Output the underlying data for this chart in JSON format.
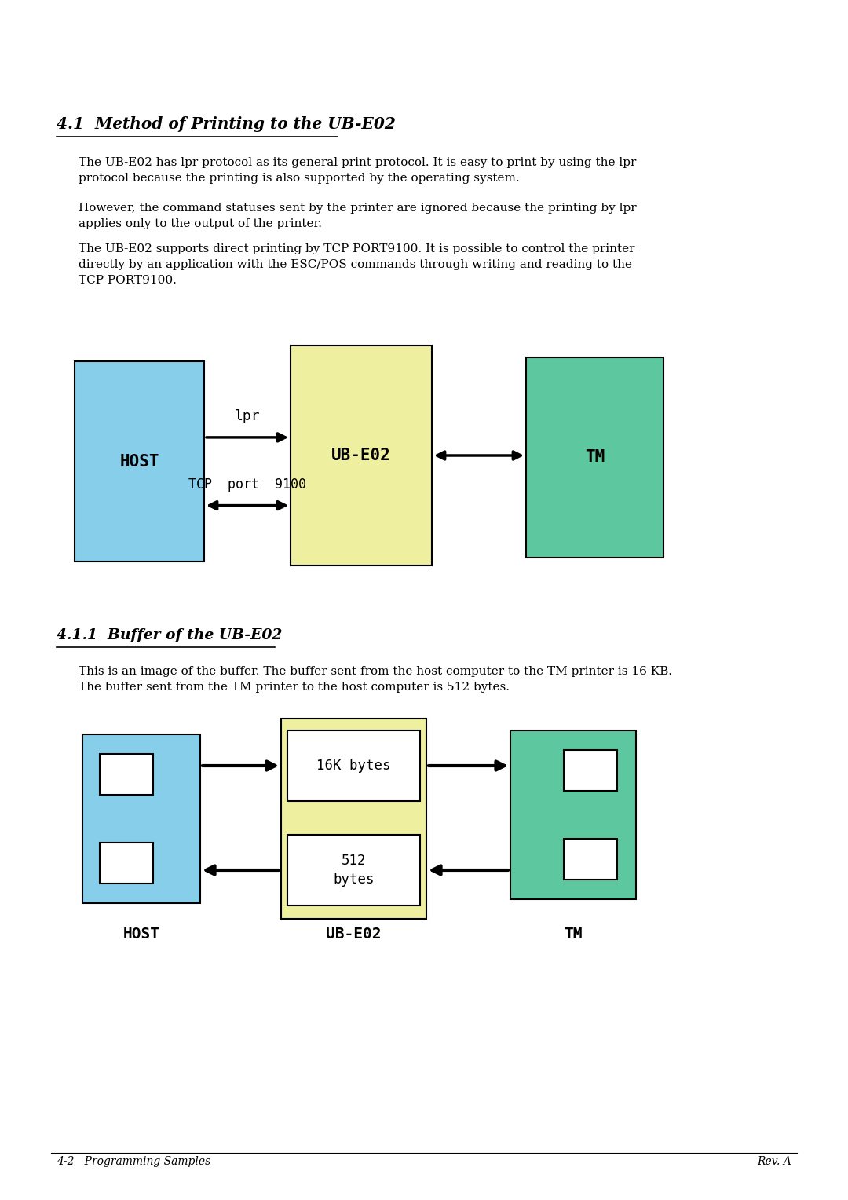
{
  "bg_color": "#ffffff",
  "title1": "4.1  Method of Printing to the UB-E02",
  "para1": "The UB-E02 has lpr protocol as its general print protocol. It is easy to print by using the lpr\nprotocol because the printing is also supported by the operating system.",
  "para2": "However, the command statuses sent by the printer are ignored because the printing by lpr\napplies only to the output of the printer.",
  "para3": "The UB-E02 supports direct printing by TCP PORT9100. It is possible to control the printer\ndirectly by an application with the ESC/POS commands through writing and reading to the\nTCP PORT9100.",
  "title2": "4.1.1  Buffer of the UB-E02",
  "para4": "This is an image of the buffer. The buffer sent from the host computer to the TM printer is 16 KB.\nThe buffer sent from the TM printer to the host computer is 512 bytes.",
  "footer_left": "4-2   Programming Samples",
  "footer_right": "Rev. A",
  "host_color": "#87CEEB",
  "ubE02_color": "#EFEFA0",
  "tm_color": "#5DC8A0",
  "box_edge_color": "#000000"
}
